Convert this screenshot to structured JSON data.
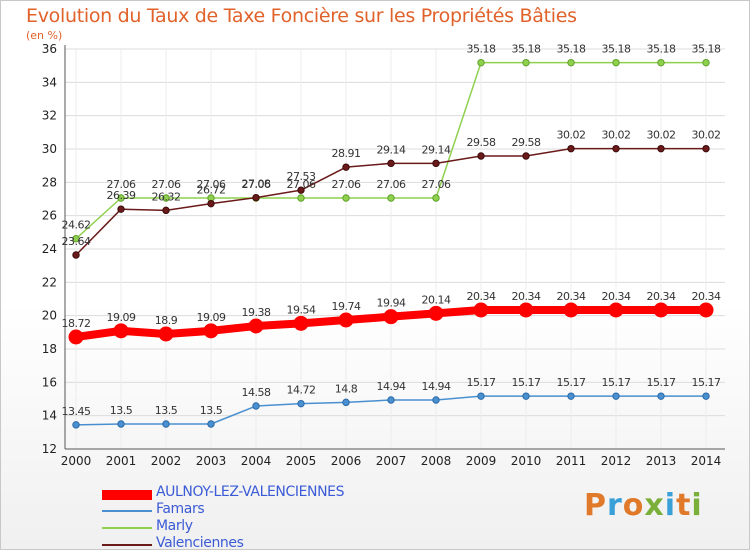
{
  "title": "Evolution du Taux de Taxe Foncière sur les Propriétés Bâties",
  "subtitle": "(en %)",
  "logo": {
    "text": "Proxiti",
    "colors": [
      "#e07a2a",
      "#3aa0d8",
      "#e07a2a",
      "#7ab03a",
      "#3aa0d8",
      "#e07a2a",
      "#7ab03a"
    ]
  },
  "chart_data": {
    "type": "line",
    "x": [
      "2000",
      "2001",
      "2002",
      "2003",
      "2004",
      "2005",
      "2006",
      "2007",
      "2008",
      "2009",
      "2010",
      "2011",
      "2012",
      "2013",
      "2014"
    ],
    "ylim": [
      12,
      36
    ],
    "yticks": [
      "12",
      "14",
      "16",
      "18",
      "20",
      "22",
      "24",
      "26",
      "28",
      "30",
      "32",
      "34",
      "36"
    ],
    "grid": true,
    "legend_position": "bottom-left",
    "series": [
      {
        "name": "AULNOY-LEZ-VALENCIENNES",
        "color": "#ff0000",
        "values": [
          18.72,
          19.09,
          18.9,
          19.09,
          19.38,
          19.54,
          19.74,
          19.94,
          20.14,
          20.34,
          20.34,
          20.34,
          20.34,
          20.34,
          20.34
        ],
        "labels": [
          "18.72",
          "19.09",
          "18.9",
          "19.09",
          "19.38",
          "19.54",
          "19.74",
          "19.94",
          "20.14",
          "20.34",
          "20.34",
          "20.34",
          "20.34",
          "20.34",
          "20.34"
        ]
      },
      {
        "name": "Famars",
        "color": "#4a90d0",
        "values": [
          13.45,
          13.5,
          13.5,
          13.5,
          14.58,
          14.72,
          14.8,
          14.94,
          14.94,
          15.17,
          15.17,
          15.17,
          15.17,
          15.17,
          15.17
        ],
        "labels": [
          "13.45",
          "13.5",
          "13.5",
          "13.5",
          "14.58",
          "14.72",
          "14.8",
          "14.94",
          "14.94",
          "15.17",
          "15.17",
          "15.17",
          "15.17",
          "15.17",
          "15.17"
        ]
      },
      {
        "name": "Marly",
        "color": "#8fd14f",
        "values": [
          24.62,
          27.06,
          27.06,
          27.06,
          27.06,
          27.06,
          27.06,
          27.06,
          27.06,
          35.18,
          35.18,
          35.18,
          35.18,
          35.18,
          35.18
        ],
        "labels": [
          "24.62",
          "27.06",
          "27.06",
          "27.06",
          "27.06",
          "27.06",
          "27.06",
          "27.06",
          "27.06",
          "35.18",
          "35.18",
          "35.18",
          "35.18",
          "35.18",
          "35.18"
        ]
      },
      {
        "name": "Valenciennes",
        "color": "#6b1a1a",
        "values": [
          23.64,
          26.39,
          26.32,
          26.72,
          27.08,
          27.53,
          28.91,
          29.14,
          29.14,
          29.58,
          29.58,
          30.02,
          30.02,
          30.02,
          30.02
        ],
        "labels": [
          "23.64",
          "26.39",
          "26.32",
          "26.72",
          "27.08",
          "27.53",
          "28.91",
          "29.14",
          "29.14",
          "29.58",
          "29.58",
          "30.02",
          "30.02",
          "30.02",
          "30.02"
        ]
      }
    ]
  }
}
